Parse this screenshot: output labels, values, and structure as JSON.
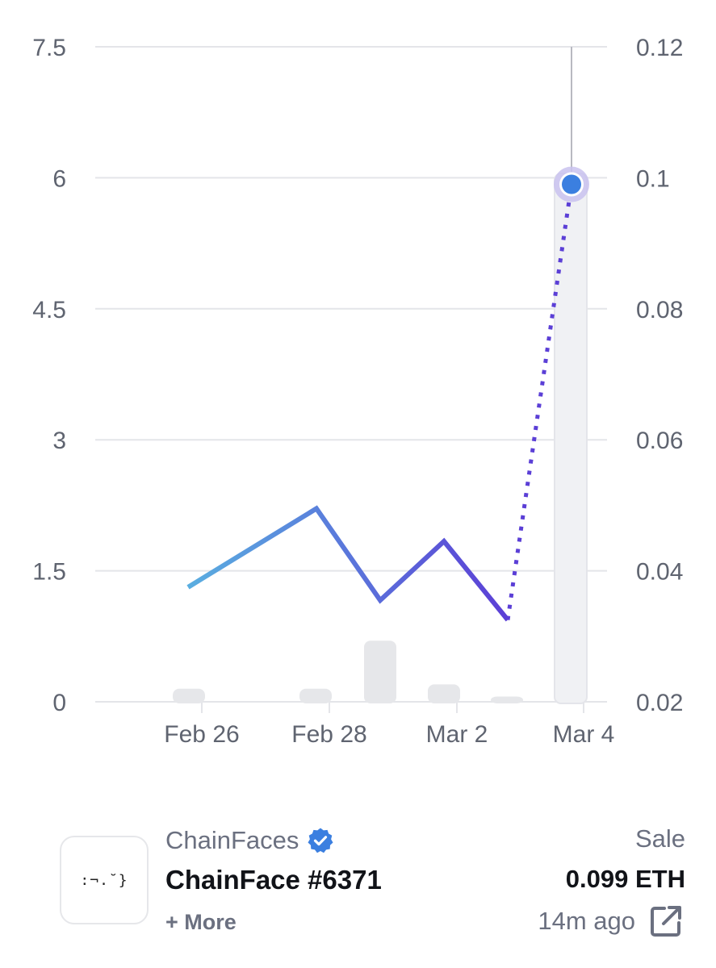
{
  "chart_data": {
    "type": "line",
    "title": "",
    "xlabel": "",
    "ylabel": "",
    "x_ticks": [
      "Feb 26",
      "Feb 28",
      "Mar 2",
      "Mar 4"
    ],
    "left_axis": {
      "ticks": [
        "0",
        "1.5",
        "3",
        "4.5",
        "6",
        "7.5"
      ],
      "range": [
        0,
        7.5
      ]
    },
    "right_axis": {
      "ticks": [
        "0.02",
        "0.04",
        "0.06",
        "0.08",
        "0.1",
        "0.12"
      ],
      "range": [
        0.02,
        0.12
      ]
    },
    "grid": true,
    "volume_bars": [
      {
        "day": "Feb 25",
        "value": 0.15
      },
      {
        "day": "Feb 27",
        "value": 0.15
      },
      {
        "day": "Feb 28",
        "value": 0.7
      },
      {
        "day": "Mar 1",
        "value": 0.2
      },
      {
        "day": "Mar 2",
        "value": 0.06
      },
      {
        "day": "Mar 3",
        "value": 6.05
      }
    ],
    "price_series": [
      {
        "day": "Feb 25",
        "value": 0.0375
      },
      {
        "day": "Feb 27",
        "value": 0.0495
      },
      {
        "day": "Feb 28",
        "value": 0.0355
      },
      {
        "day": "Mar 1",
        "value": 0.0445
      },
      {
        "day": "Mar 2",
        "value": 0.0325
      }
    ],
    "projected_segment": [
      {
        "day": "Mar 2",
        "value": 0.0325
      },
      {
        "day": "Mar 3",
        "value": 0.099
      }
    ],
    "highlight_point": {
      "day": "Mar 3",
      "value": 0.099
    },
    "colors": {
      "line_start": "#5aaee0",
      "line_end": "#5b3fd6",
      "dotted": "#5b3fd6",
      "marker": "#3b7fe0",
      "marker_halo": "#c9c2ee",
      "bar": "#e6e7ea",
      "bar_highlight": "#f0f1f4",
      "grid": "#e4e5e9"
    }
  },
  "footer": {
    "thumbnail_face": ":¬.˘}",
    "collection_name": "ChainFaces",
    "verified": true,
    "item_name": "ChainFace #6371",
    "more_label": "+ More",
    "event_type": "Sale",
    "price": "0.099 ETH",
    "time_ago": "14m ago",
    "icons": {
      "verified": "verified-badge-icon",
      "external": "external-link-icon"
    }
  }
}
